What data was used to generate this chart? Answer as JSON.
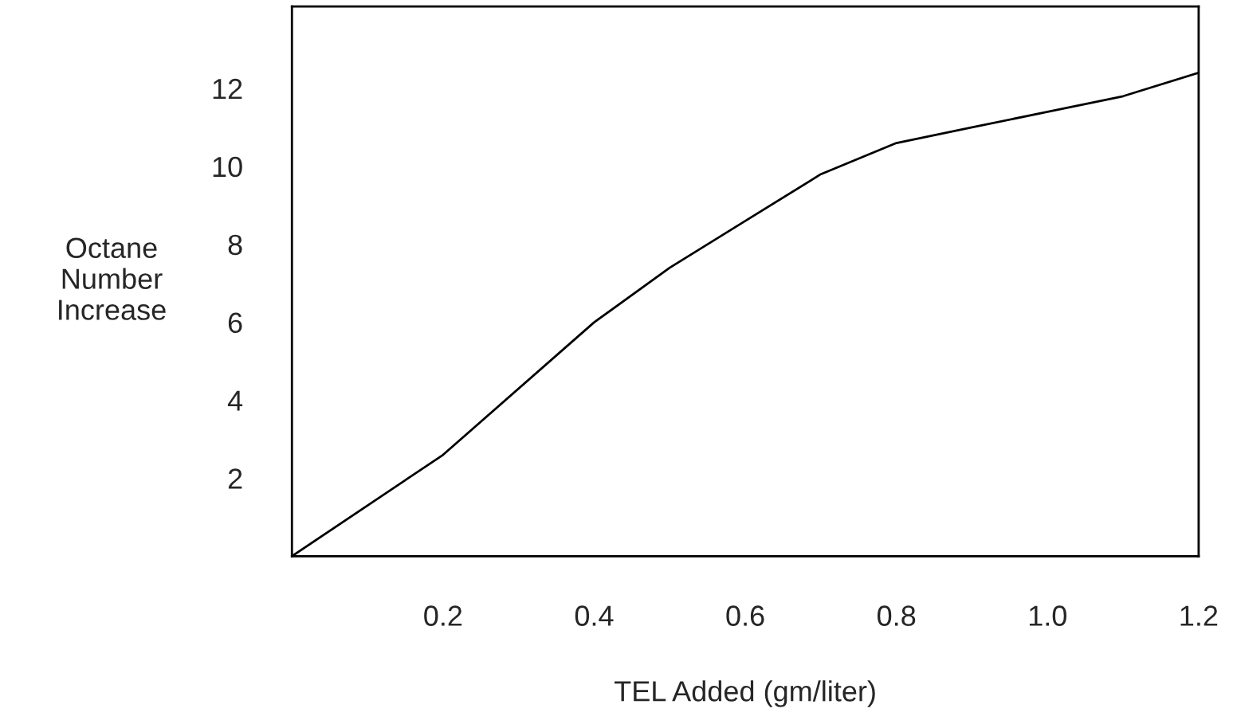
{
  "chart_data": {
    "type": "line",
    "xlabel": "TEL Added (gm/liter)",
    "ylabel": "Octane\nNumber\nIncrease",
    "x": [
      0,
      0.2,
      0.4,
      0.5,
      0.6,
      0.7,
      0.8,
      0.9,
      1.0,
      1.1,
      1.2
    ],
    "series": [
      {
        "color": "#000000",
        "values": [
          0,
          2.6,
          6.0,
          7.4,
          8.6,
          9.8,
          10.6,
          11.0,
          11.4,
          11.8,
          12.4
        ]
      }
    ],
    "xlim": [
      0,
      1.2
    ],
    "ylim": [
      0,
      14.1
    ],
    "xticks": [
      0.2,
      0.4,
      0.6,
      0.8,
      {
        "value": 1.0,
        "label": "1.0"
      },
      1.2
    ],
    "yticks": [
      2,
      4,
      6,
      8,
      10,
      12
    ],
    "grid": false,
    "legend": false,
    "marker": "none",
    "line_style": "solid"
  }
}
